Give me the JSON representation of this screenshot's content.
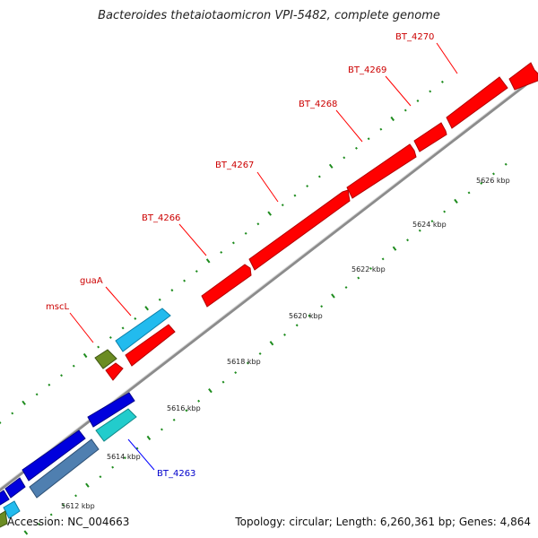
{
  "title": "Bacteroides thetaiotaomicron VPI-5482, complete genome",
  "footer": {
    "accession": "Accession: NC_004663",
    "topology": "Topology: circular; Length: 6,260,361 bp; Genes: 4,864"
  },
  "colors": {
    "backbone": "#8c8c8c",
    "tick": "#1e8c1e",
    "forward_gene": "#ff0000",
    "reverse_gene": "#0000dd",
    "gene_light_blue": "#22bbee",
    "gene_steel_blue": "#4f7fb0",
    "gene_cyan": "#22cccc",
    "gene_olive": "#6b8c22",
    "label_forward": "#cc0000",
    "label_reverse": "#0000cc"
  },
  "scale_labels": [
    "5612 kbp",
    "5614 kbp",
    "5616 kbp",
    "5618 kbp",
    "5620 kbp",
    "5622 kbp",
    "5624 kbp",
    "5626 kbp"
  ],
  "gene_labels": [
    {
      "name": "BT_4270",
      "strand": "forward"
    },
    {
      "name": "BT_4269",
      "strand": "forward"
    },
    {
      "name": "BT_4268",
      "strand": "forward"
    },
    {
      "name": "BT_4267",
      "strand": "forward"
    },
    {
      "name": "BT_4266",
      "strand": "forward"
    },
    {
      "name": "guaA",
      "strand": "forward"
    },
    {
      "name": "mscL",
      "strand": "forward"
    },
    {
      "name": "BT_4263",
      "strand": "reverse"
    }
  ]
}
